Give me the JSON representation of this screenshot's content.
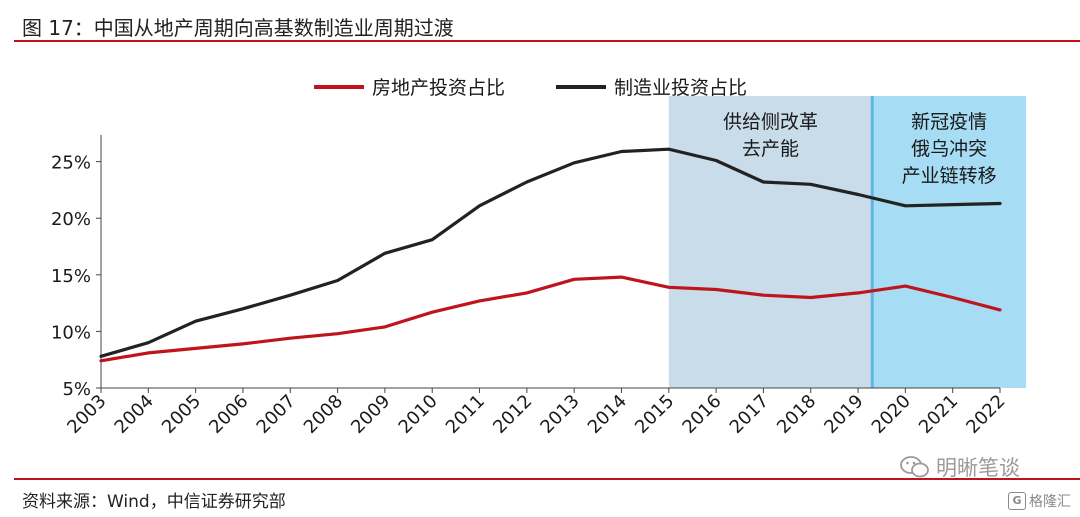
{
  "header": {
    "title": "图 17：中国从地产周期向高基数制造业周期过渡"
  },
  "footer": {
    "source": "资料来源：Wind，中信证券研究部"
  },
  "watermark": {
    "text": "明晰笔谈",
    "logo_text": "格隆汇",
    "logo_letter": "G"
  },
  "colors": {
    "real_estate": "#c0141c",
    "manufacturing": "#222222",
    "band_2015_2019": "#c9dcea",
    "band_2019_2022": "#a6dcf4",
    "band_divider": "#5fb6e6"
  },
  "chart_data": {
    "type": "line",
    "title": "",
    "xlabel": "",
    "ylabel": "",
    "categories": [
      "2003",
      "2004",
      "2005",
      "2006",
      "2007",
      "2008",
      "2009",
      "2010",
      "2011",
      "2012",
      "2013",
      "2014",
      "2015",
      "2016",
      "2017",
      "2018",
      "2019",
      "2020",
      "2021",
      "2022"
    ],
    "ylim": [
      5,
      27
    ],
    "yticks": [
      5,
      10,
      15,
      20,
      25
    ],
    "ytick_labels": [
      "5%",
      "10%",
      "15%",
      "20%",
      "25%"
    ],
    "series": [
      {
        "name": "房地产投资占比",
        "color": "#c0141c",
        "values": [
          7.4,
          8.1,
          8.5,
          8.9,
          9.4,
          9.8,
          10.4,
          11.7,
          12.7,
          13.4,
          14.6,
          14.8,
          13.9,
          13.7,
          13.2,
          13.0,
          13.4,
          14.0,
          13.0,
          11.9
        ]
      },
      {
        "name": "制造业投资占比",
        "color": "#222222",
        "values": [
          7.8,
          9.0,
          10.9,
          12.0,
          13.2,
          14.5,
          16.9,
          18.1,
          21.1,
          23.2,
          24.9,
          25.9,
          26.1,
          25.1,
          23.2,
          23.0,
          22.1,
          21.1,
          21.2,
          21.3
        ]
      }
    ],
    "legend_position": "top",
    "grid": false,
    "shaded_regions": [
      {
        "x_start": 2015.0,
        "x_end": 2019.3,
        "label_lines": [
          "供给侧改革",
          "去产能"
        ]
      },
      {
        "x_start": 2019.3,
        "x_end": 2022.55,
        "label_lines": [
          "新冠疫情",
          "俄乌冲突",
          "产业链转移"
        ]
      }
    ]
  }
}
